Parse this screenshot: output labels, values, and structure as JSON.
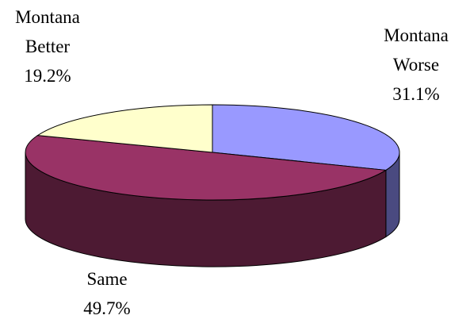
{
  "chart_data": {
    "type": "pie",
    "style": "3d",
    "slices": [
      {
        "name": "Montana Worse",
        "value": 31.1,
        "label_lines": [
          "Montana",
          "Worse"
        ],
        "value_label": "31.1%",
        "color": "#9999ff",
        "side_color": "#4a4a80"
      },
      {
        "name": "Same",
        "value": 49.7,
        "label_lines": [
          "Same"
        ],
        "value_label": "49.7%",
        "color": "#993366",
        "side_color": "#4d1a33"
      },
      {
        "name": "Montana Better",
        "value": 19.2,
        "label_lines": [
          "Montana",
          "Better"
        ],
        "value_label": "19.2%",
        "color": "#ffffcc",
        "side_color": "#808066"
      }
    ]
  }
}
